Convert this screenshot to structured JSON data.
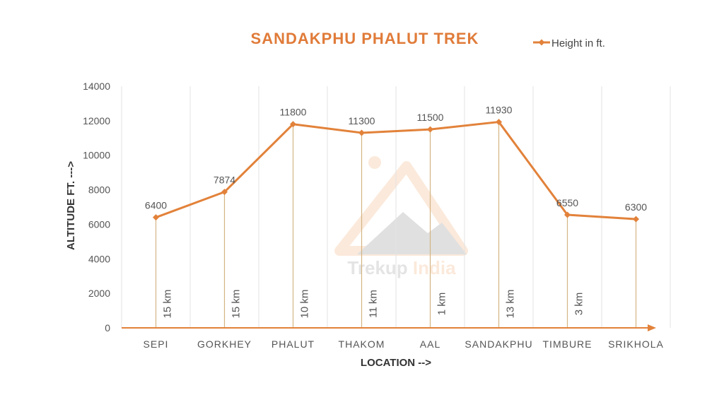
{
  "colors": {
    "accent": "#E2823A",
    "title": "#E07B39",
    "grid": "#E3E3E3",
    "stem": "#D4B483",
    "text": "#555555"
  },
  "chart_data": {
    "type": "line",
    "title": "SANDAKPHU PHALUT TREK",
    "xlabel": "LOCATION -->",
    "ylabel": "ALTITUDE FT. --->",
    "ylim": [
      0,
      14000
    ],
    "yticks": [
      0,
      2000,
      4000,
      6000,
      8000,
      10000,
      12000,
      14000
    ],
    "grid": "vertical",
    "legend_position": "top-right",
    "categories": [
      "SEPI",
      "GORKHEY",
      "PHALUT",
      "THAKOM",
      "AAL",
      "SANDAKPHU",
      "TIMBURE",
      "SRIKHOLA"
    ],
    "series": [
      {
        "name": "Height in ft.",
        "values": [
          6400,
          7874,
          11800,
          11300,
          11500,
          11930,
          6550,
          6300
        ],
        "labels": [
          "6400",
          "7874",
          "11800",
          "11300",
          "11500",
          "11930",
          "6550",
          "6300"
        ]
      }
    ],
    "segment_distances": [
      "15 km",
      "15 km",
      "10 km",
      "11 km",
      "1 km",
      "13 km",
      "3 km"
    ]
  },
  "watermark": {
    "text": "Trekup India"
  }
}
